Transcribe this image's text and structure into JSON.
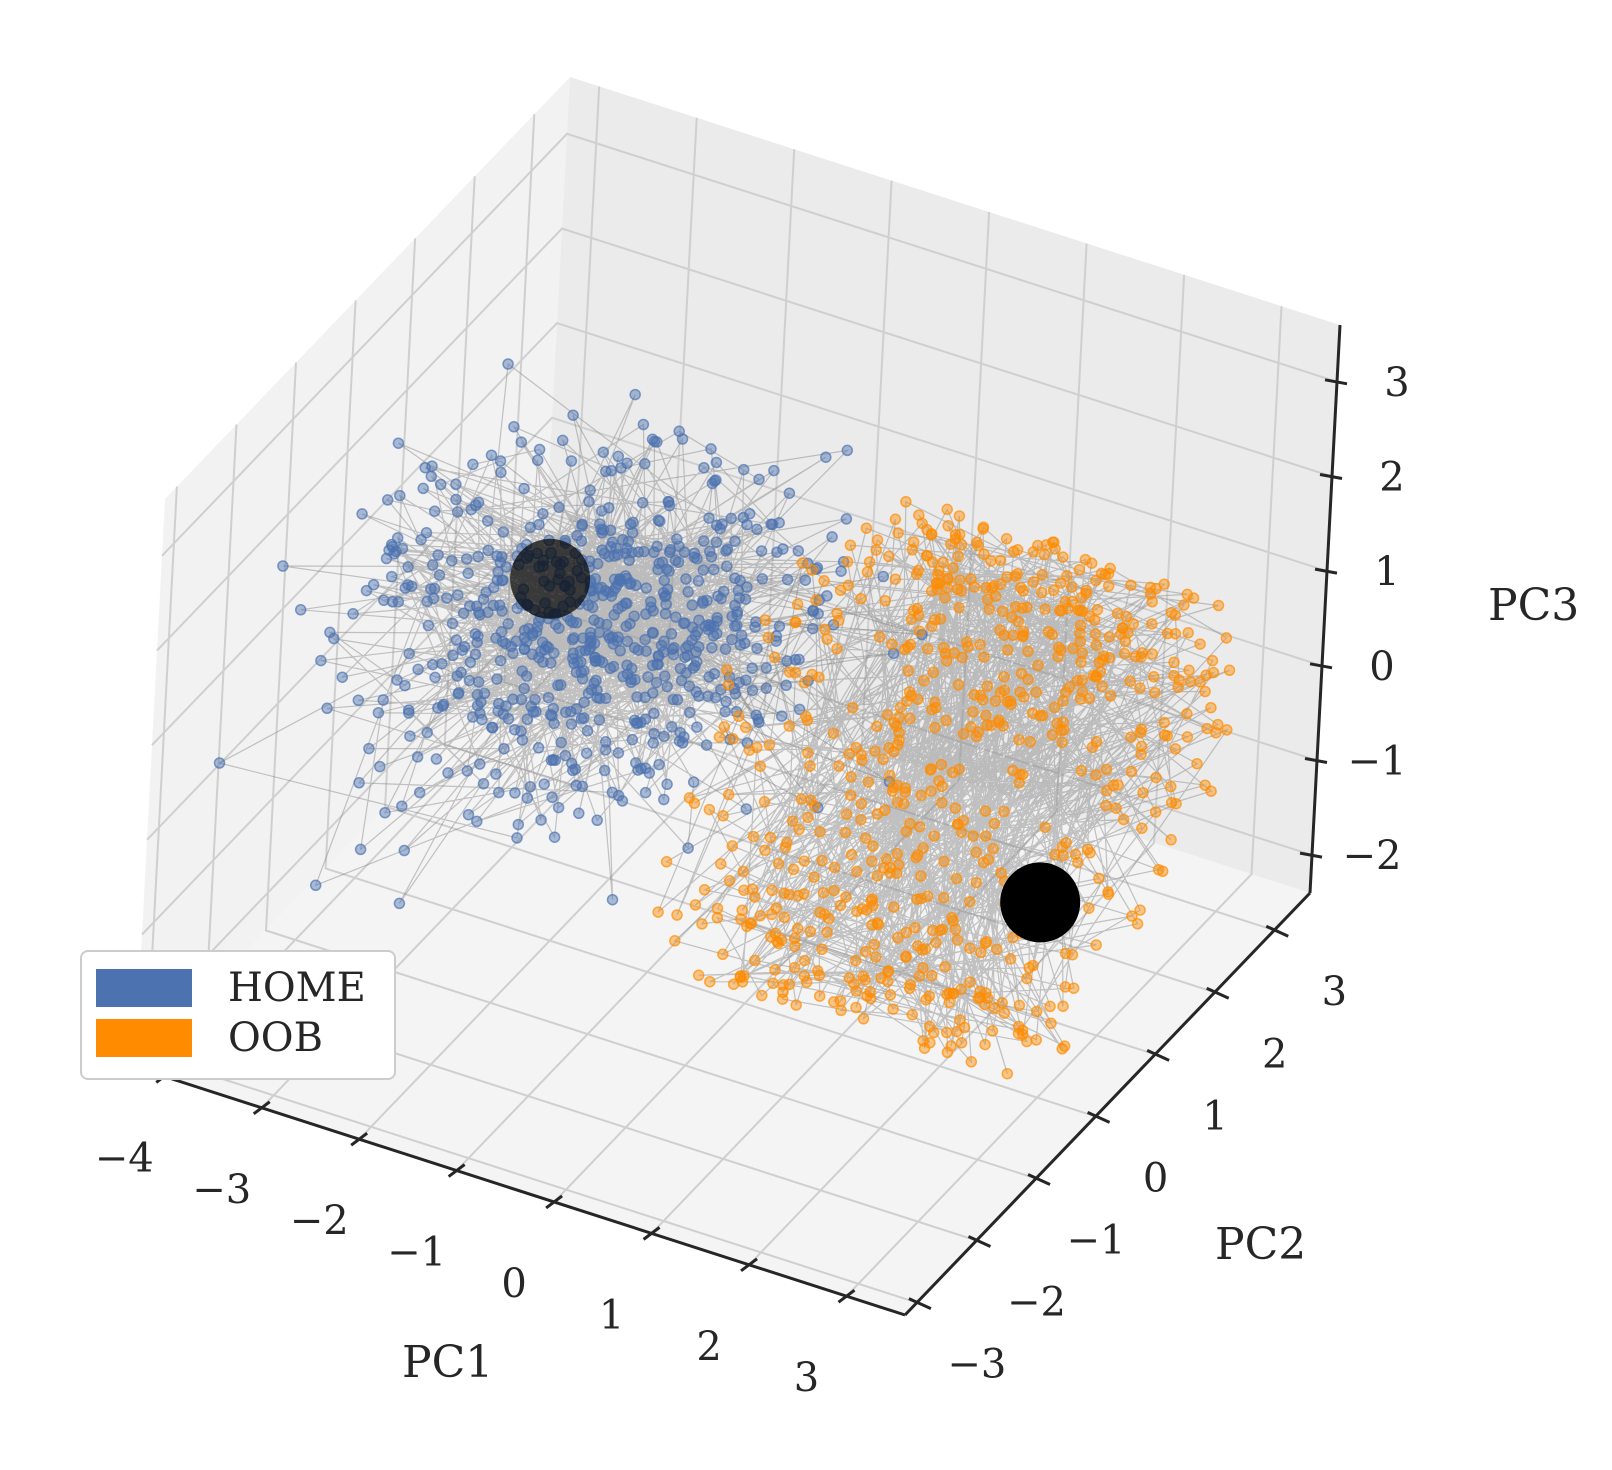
{
  "chart_data": {
    "type": "scatter",
    "projection": "3d",
    "axes": {
      "x": {
        "label": "PC1",
        "range": [
          -4.3,
          3.6
        ],
        "ticks": [
          -4,
          -3,
          -2,
          -1,
          0,
          1,
          2,
          3
        ],
        "tick_labels": [
          "−4",
          "−3",
          "−2",
          "−1",
          "0",
          "1",
          "2",
          "3"
        ]
      },
      "y": {
        "label": "PC2",
        "range": [
          -3.2,
          3.6
        ],
        "ticks": [
          -3,
          -2,
          -1,
          0,
          1,
          2,
          3
        ],
        "tick_labels": [
          "−3",
          "−2",
          "−1",
          "0",
          "1",
          "2",
          "3"
        ]
      },
      "z": {
        "label": "PC3",
        "range": [
          -2.4,
          3.6
        ],
        "ticks": [
          -2,
          -1,
          0,
          1,
          2,
          3
        ],
        "tick_labels": [
          "−2",
          "−1",
          "0",
          "1",
          "2",
          "3"
        ]
      }
    },
    "grid": true,
    "legend": {
      "location": "lower-left",
      "entries": [
        {
          "label": "HOME",
          "color": "#4c72b0"
        },
        {
          "label": "OOB",
          "color": "#ff8c00"
        }
      ]
    },
    "series": [
      {
        "name": "HOME",
        "color": "#4c72b0",
        "description_points": "dense cluster of trajectory points near PC1≈-3..0, PC2≈-1..2, PC3≈-0.5..1",
        "center": [
          -2.0,
          0.5,
          0.6
        ],
        "spread": [
          1.0,
          1.0,
          0.6
        ],
        "count": 700
      },
      {
        "name": "OOB",
        "color": "#ff8c00",
        "description_points": "ring-shaped trajectory around PC1≈-1..3, radius ~2.5 in PC2-PC3 plane",
        "center": [
          1.2,
          0.2,
          0.4
        ],
        "ring_radius": 2.4,
        "count": 700
      }
    ],
    "centroids": [
      {
        "series": "HOME",
        "point": [
          -2.7,
          0.9,
          0.6
        ]
      },
      {
        "series": "OOB",
        "point": [
          2.7,
          0.4,
          -0.7
        ]
      }
    ],
    "line_color": "#808080"
  }
}
